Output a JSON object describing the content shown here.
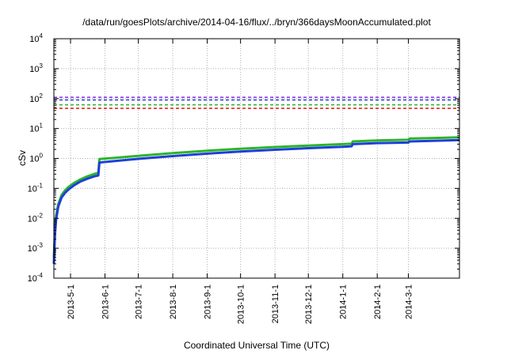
{
  "chart_data": {
    "type": "line",
    "title": "/data/run/goesPlots/archive/2014-04-16/flux/../bryn/366daysMoonAccumulated.plot",
    "xlabel": "Coordinated Universal Time (UTC)",
    "ylabel": "cSv",
    "y_scale": "log",
    "ylim": [
      0.0001,
      10000
    ],
    "xlim": [
      "2013-04-16",
      "2014-04-16"
    ],
    "grid": true,
    "y_ticks": [
      {
        "value": 0.0001,
        "base": "10",
        "exp": "-4"
      },
      {
        "value": 0.001,
        "base": "10",
        "exp": "-3"
      },
      {
        "value": 0.01,
        "base": "10",
        "exp": "-2"
      },
      {
        "value": 0.1,
        "base": "10",
        "exp": "-1"
      },
      {
        "value": 1,
        "base": "10",
        "exp": "0"
      },
      {
        "value": 10,
        "base": "10",
        "exp": "1"
      },
      {
        "value": 100,
        "base": "10",
        "exp": "2"
      },
      {
        "value": 1000,
        "base": "10",
        "exp": "3"
      },
      {
        "value": 10000,
        "base": "10",
        "exp": "4"
      }
    ],
    "x_ticks": [
      {
        "date": "2013-05-01",
        "label": "2013-5-1"
      },
      {
        "date": "2013-06-01",
        "label": "2013-6-1"
      },
      {
        "date": "2013-07-01",
        "label": "2013-7-1"
      },
      {
        "date": "2013-08-01",
        "label": "2013-8-1"
      },
      {
        "date": "2013-09-01",
        "label": "2013-9-1"
      },
      {
        "date": "2013-10-01",
        "label": "2013-10-1"
      },
      {
        "date": "2013-11-01",
        "label": "2013-11-1"
      },
      {
        "date": "2013-12-01",
        "label": "2013-12-1"
      },
      {
        "date": "2014-01-01",
        "label": "2014-1-1"
      },
      {
        "date": "2014-02-01",
        "label": "2014-2-1"
      },
      {
        "date": "2014-03-01",
        "label": "2014-3-1"
      }
    ],
    "reference_lines": [
      {
        "y": 110,
        "color": "#8b2be2",
        "style": "dashed"
      },
      {
        "y": 90,
        "color": "#1f3fd8",
        "style": "dashed"
      },
      {
        "y": 62,
        "color": "#2bb52b",
        "style": "dashed"
      },
      {
        "y": 47,
        "color": "#e01818",
        "style": "dashed"
      }
    ],
    "series": [
      {
        "color": "#2bb52b",
        "x": [
          "2013-04-16",
          "2013-04-17",
          "2013-04-18",
          "2013-04-20",
          "2013-04-23",
          "2013-04-26",
          "2013-04-29",
          "2013-05-04",
          "2013-05-10",
          "2013-05-16",
          "2013-05-22",
          "2013-05-26",
          "2013-05-27",
          "2013-06-10",
          "2013-07-01",
          "2013-08-01",
          "2013-09-01",
          "2013-10-01",
          "2013-11-01",
          "2013-12-01",
          "2014-01-01",
          "2014-01-09",
          "2014-01-10",
          "2014-02-01",
          "2014-03-01",
          "2014-03-02",
          "2014-04-01",
          "2014-04-16"
        ],
        "values": [
          0.0005,
          0.004,
          0.012,
          0.03,
          0.06,
          0.085,
          0.11,
          0.15,
          0.2,
          0.25,
          0.3,
          0.33,
          0.95,
          1.05,
          1.22,
          1.5,
          1.8,
          2.1,
          2.4,
          2.7,
          3.0,
          3.1,
          3.7,
          4.0,
          4.2,
          4.6,
          4.9,
          5.1
        ]
      },
      {
        "color": "#1f3fd8",
        "x": [
          "2013-04-16",
          "2013-04-17",
          "2013-04-18",
          "2013-04-20",
          "2013-04-23",
          "2013-04-26",
          "2013-04-29",
          "2013-05-04",
          "2013-05-10",
          "2013-05-16",
          "2013-05-22",
          "2013-05-26",
          "2013-05-27",
          "2013-06-10",
          "2013-07-01",
          "2013-08-01",
          "2013-09-01",
          "2013-10-01",
          "2013-11-01",
          "2013-12-01",
          "2014-01-01",
          "2014-01-09",
          "2014-01-10",
          "2014-02-01",
          "2014-03-01",
          "2014-03-02",
          "2014-04-01",
          "2014-04-16"
        ],
        "values": [
          0.0003,
          0.003,
          0.009,
          0.025,
          0.05,
          0.07,
          0.09,
          0.125,
          0.17,
          0.21,
          0.25,
          0.27,
          0.73,
          0.82,
          0.97,
          1.2,
          1.45,
          1.7,
          1.95,
          2.2,
          2.45,
          2.55,
          3.0,
          3.25,
          3.4,
          3.7,
          3.95,
          4.1
        ]
      }
    ]
  }
}
